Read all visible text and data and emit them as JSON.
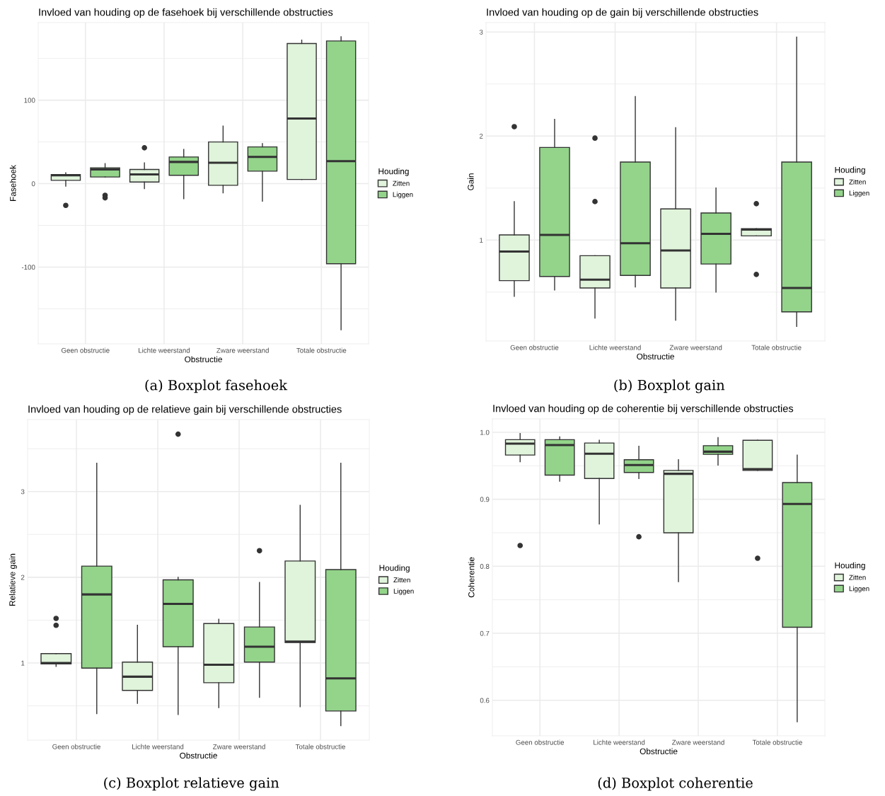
{
  "chart_data": [
    {
      "type": "box",
      "title": "Invloed van houding op de fasehoek bij verschillende obstructies",
      "xlabel": "Obstructie",
      "ylabel": "Fasehoek",
      "legend_title": "Houding",
      "categories": [
        "Geen obstructie",
        "Lichte weerstand",
        "Zware weerstand",
        "Totale obstructie"
      ],
      "series": [
        {
          "name": "Zitten",
          "color": "#e0f3db",
          "boxes": [
            {
              "low": -3,
              "q1": 4,
              "median": 10,
              "q3": 11,
              "high": 13,
              "outliers": [
                -26
              ]
            },
            {
              "low": -6,
              "q1": 2,
              "median": 11,
              "q3": 17,
              "high": 25,
              "outliers": [
                43
              ]
            },
            {
              "low": -11,
              "q1": -2,
              "median": 25,
              "q3": 50,
              "high": 69
            },
            {
              "low": 5,
              "q1": 5,
              "median": 78,
              "q3": 168,
              "high": 172
            }
          ]
        },
        {
          "name": "Liggen",
          "color": "#93d48a",
          "boxes": [
            {
              "low": 8,
              "q1": 8,
              "median": 17,
              "q3": 19,
              "high": 24,
              "outliers": [
                -14,
                -17
              ]
            },
            {
              "low": -18,
              "q1": 10,
              "median": 26,
              "q3": 32,
              "high": 41
            },
            {
              "low": -21,
              "q1": 15,
              "median": 32,
              "q3": 44,
              "high": 48
            },
            {
              "low": -175,
              "q1": -96,
              "median": 27,
              "q3": 171,
              "high": 176
            }
          ]
        }
      ],
      "ylim": [
        -192,
        193
      ],
      "yticks": [
        {
          "value": -150,
          "label": null
        },
        -100,
        {
          "value": -50,
          "label": null
        },
        0,
        {
          "value": 50,
          "label": null
        },
        100,
        {
          "value": 150,
          "label": null
        }
      ],
      "grid": true,
      "legend": "right",
      "annotations": [
        "(a) Boxplot fasehoek"
      ]
    },
    {
      "type": "box",
      "title": "Invloed van houding op de gain bij verschillende obstructies",
      "xlabel": "Obstructie",
      "ylabel": "Gain",
      "legend_title": "Houding",
      "categories": [
        "Geen obstructie",
        "Lichte weerstand",
        "Zware weerstand",
        "Totale obstructie"
      ],
      "series": [
        {
          "name": "Zitten",
          "color": "#e0f3db",
          "boxes": [
            {
              "low": 0.46,
              "q1": 0.61,
              "median": 0.89,
              "q3": 1.05,
              "high": 1.37,
              "outliers": [
                2.09
              ]
            },
            {
              "low": 0.25,
              "q1": 0.54,
              "median": 0.62,
              "q3": 0.85,
              "high": 0.85,
              "outliers": [
                1.98,
                1.37
              ]
            },
            {
              "low": 0.23,
              "q1": 0.54,
              "median": 0.9,
              "q3": 1.3,
              "high": 2.08
            },
            {
              "low": 1.04,
              "q1": 1.04,
              "median": 1.1,
              "q3": 1.11,
              "high": 1.11,
              "outliers": [
                1.35,
                0.67
              ]
            }
          ]
        },
        {
          "name": "Liggen",
          "color": "#93d48a",
          "boxes": [
            {
              "low": 0.52,
              "q1": 0.65,
              "median": 1.05,
              "q3": 1.89,
              "high": 2.16
            },
            {
              "low": 0.55,
              "q1": 0.66,
              "median": 0.97,
              "q3": 1.75,
              "high": 2.38
            },
            {
              "low": 0.5,
              "q1": 0.77,
              "median": 1.06,
              "q3": 1.26,
              "high": 1.5
            },
            {
              "low": 0.17,
              "q1": 0.31,
              "median": 0.54,
              "q3": 1.75,
              "high": 2.95
            }
          ]
        }
      ],
      "ylim": [
        0.03,
        3.09
      ],
      "yticks": [
        {
          "value": 0.5,
          "label": null
        },
        1,
        {
          "value": 1.5,
          "label": null
        },
        2,
        {
          "value": 2.5,
          "label": null
        },
        3
      ],
      "grid": true,
      "legend": "right",
      "annotations": [
        "(b) Boxplot gain"
      ]
    },
    {
      "type": "box",
      "title": "Invloed van houding op de relatieve gain bij verschillende obstructies",
      "xlabel": "Obstructie",
      "ylabel": "Relatieve gain",
      "legend_title": "Houding",
      "categories": [
        "Geen obstructie",
        "Lichte weerstand",
        "Zware weerstand",
        "Totale obstructie"
      ],
      "series": [
        {
          "name": "Zitten",
          "color": "#e0f3db",
          "boxes": [
            {
              "low": 0.96,
              "q1": 0.99,
              "median": 1.0,
              "q3": 1.11,
              "high": 1.11,
              "outliers": [
                1.52,
                1.44
              ]
            },
            {
              "low": 0.53,
              "q1": 0.68,
              "median": 0.84,
              "q3": 1.01,
              "high": 1.44
            },
            {
              "low": 0.48,
              "q1": 0.77,
              "median": 0.98,
              "q3": 1.46,
              "high": 1.51
            },
            {
              "low": 0.49,
              "q1": 1.24,
              "median": 1.25,
              "q3": 2.19,
              "high": 2.84
            }
          ]
        },
        {
          "name": "Liggen",
          "color": "#93d48a",
          "boxes": [
            {
              "low": 0.41,
              "q1": 0.94,
              "median": 1.8,
              "q3": 2.13,
              "high": 3.33
            },
            {
              "low": 0.4,
              "q1": 1.19,
              "median": 1.69,
              "q3": 1.97,
              "high": 2.0,
              "outliers": [
                3.67
              ]
            },
            {
              "low": 0.6,
              "q1": 1.01,
              "median": 1.19,
              "q3": 1.42,
              "high": 1.94,
              "outliers": [
                2.31
              ]
            },
            {
              "low": 0.27,
              "q1": 0.44,
              "median": 0.82,
              "q3": 2.09,
              "high": 3.33
            }
          ]
        }
      ],
      "ylim": [
        0.1,
        3.84
      ],
      "yticks": [
        {
          "value": 0.5,
          "label": null
        },
        1,
        {
          "value": 1.5,
          "label": null
        },
        2,
        {
          "value": 2.5,
          "label": null
        },
        3,
        {
          "value": 3.5,
          "label": null
        }
      ],
      "grid": true,
      "legend": "right",
      "annotations": [
        "(c) Boxplot relatieve gain"
      ]
    },
    {
      "type": "box",
      "title": "Invloed van houding op de coherentie bij verschillende obstructies",
      "xlabel": "Obstructie",
      "ylabel": "Coherentie",
      "legend_title": "Houding",
      "categories": [
        "Geen obstructie",
        "Lichte weerstand",
        "Zware weerstand",
        "Totale obstructie"
      ],
      "series": [
        {
          "name": "Zitten",
          "color": "#e0f3db",
          "boxes": [
            {
              "low": 0.956,
              "q1": 0.966,
              "median": 0.983,
              "q3": 0.989,
              "high": 0.998,
              "outliers": [
                0.831
              ]
            },
            {
              "low": 0.863,
              "q1": 0.931,
              "median": 0.968,
              "q3": 0.984,
              "high": 0.988
            },
            {
              "low": 0.777,
              "q1": 0.85,
              "median": 0.938,
              "q3": 0.943,
              "high": 0.959
            },
            {
              "low": 0.943,
              "q1": 0.943,
              "median": 0.945,
              "q3": 0.988,
              "high": 0.988,
              "outliers": [
                0.812
              ]
            }
          ]
        },
        {
          "name": "Liggen",
          "color": "#93d48a",
          "boxes": [
            {
              "low": 0.927,
              "q1": 0.936,
              "median": 0.981,
              "q3": 0.989,
              "high": 0.993
            },
            {
              "low": 0.931,
              "q1": 0.94,
              "median": 0.951,
              "q3": 0.959,
              "high": 0.979,
              "outliers": [
                0.844
              ]
            },
            {
              "low": 0.951,
              "q1": 0.967,
              "median": 0.971,
              "q3": 0.98,
              "high": 0.992
            },
            {
              "low": 0.568,
              "q1": 0.709,
              "median": 0.893,
              "q3": 0.925,
              "high": 0.966
            }
          ]
        }
      ],
      "ylim": [
        0.547,
        1.02
      ],
      "yticks": [
        0.6,
        {
          "value": 0.65,
          "label": null
        },
        0.7,
        {
          "value": 0.75,
          "label": null
        },
        0.8,
        {
          "value": 0.85,
          "label": null
        },
        0.9,
        {
          "value": 0.95,
          "label": null
        },
        {
          "value": 1,
          "label": "1.0"
        }
      ],
      "grid": true,
      "legend": "right",
      "annotations": [
        "(d) Boxplot coherentie"
      ]
    }
  ]
}
